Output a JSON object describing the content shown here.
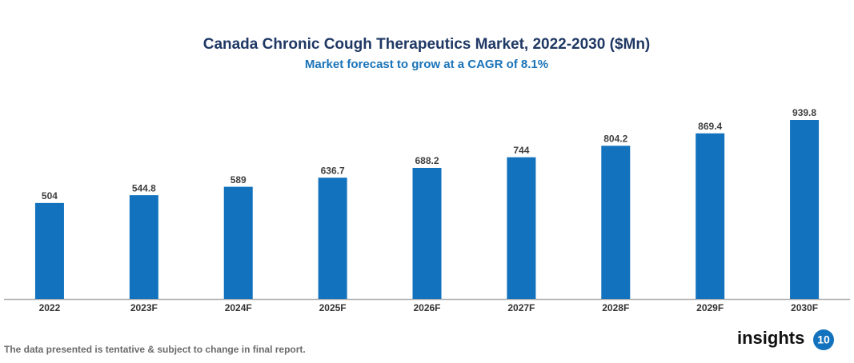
{
  "chart_data": {
    "type": "bar",
    "title": "Canada Chronic Cough Therapeutics Market, 2022-2030 ($Mn)",
    "subtitle": "Market forecast to grow at a CAGR of 8.1%",
    "categories": [
      "2022",
      "2023F",
      "2024F",
      "2025F",
      "2026F",
      "2027F",
      "2028F",
      "2029F",
      "2030F"
    ],
    "values": [
      504,
      544.8,
      589,
      636.7,
      688.2,
      744,
      804.2,
      869.4,
      939.8
    ],
    "color": "#1272bd"
  },
  "footer": {
    "note": "The data presented is tentative & subject to change in final report.",
    "logo_text": "insights",
    "logo_badge": "10"
  }
}
